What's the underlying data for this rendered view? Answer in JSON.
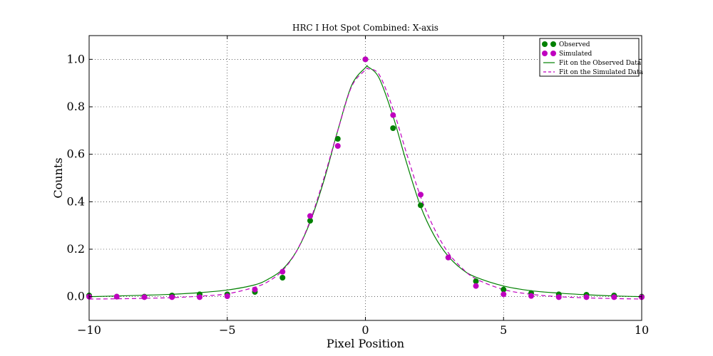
{
  "chart_data": {
    "type": "scatter",
    "title": "HRC I Hot Spot Combined: X-axis",
    "xlabel": "Pixel Position",
    "ylabel": "Counts",
    "xlim": [
      -10,
      10
    ],
    "ylim": [
      -0.1,
      1.1
    ],
    "xticks": [
      -10,
      -5,
      0,
      5,
      10
    ],
    "xtick_labels": [
      "−10",
      "−5",
      "0",
      "5",
      "10"
    ],
    "yticks": [
      0.0,
      0.2,
      0.4,
      0.6,
      0.8,
      1.0
    ],
    "ytick_labels": [
      "0.0",
      "0.2",
      "0.4",
      "0.6",
      "0.8",
      "1.0"
    ],
    "grid": true,
    "legend_position": "top-right",
    "series": [
      {
        "name": "Observed",
        "kind": "points",
        "color": "#008000",
        "x": [
          -10,
          -9,
          -8,
          -7,
          -6,
          -5,
          -4,
          -3,
          -2,
          -1,
          0,
          1,
          2,
          3,
          4,
          5,
          6,
          7,
          8,
          9,
          10
        ],
        "y": [
          0.005,
          0.0,
          0.0,
          0.005,
          0.01,
          0.01,
          0.02,
          0.08,
          0.32,
          0.665,
          1.0,
          0.71,
          0.385,
          0.165,
          0.065,
          0.03,
          0.015,
          0.01,
          0.008,
          0.005,
          0.0
        ]
      },
      {
        "name": "Simulated",
        "kind": "points",
        "color": "#bf00bf",
        "x": [
          -10,
          -9,
          -8,
          -7,
          -6,
          -5,
          -4,
          -3,
          -2,
          -1,
          0,
          1,
          2,
          3,
          4,
          5,
          6,
          7,
          8,
          9,
          10
        ],
        "y": [
          0.0,
          0.0,
          -0.002,
          -0.002,
          -0.002,
          0.002,
          0.03,
          0.105,
          0.34,
          0.635,
          1.0,
          0.765,
          0.43,
          0.165,
          0.045,
          0.01,
          0.003,
          -0.002,
          -0.002,
          -0.002,
          -0.002
        ]
      },
      {
        "name": "Fit on the Observed Data",
        "kind": "line",
        "color": "#008000",
        "dash": "solid",
        "x": [
          -10,
          -9,
          -8,
          -7,
          -6,
          -5,
          -4,
          -3.5,
          -3,
          -2.5,
          -2,
          -1.5,
          -1,
          -0.5,
          0,
          0.1,
          0.5,
          1,
          1.5,
          2,
          2.5,
          3,
          3.5,
          4,
          5,
          6,
          7,
          8,
          9,
          10
        ],
        "y": [
          0.0,
          0.003,
          0.006,
          0.01,
          0.017,
          0.028,
          0.05,
          0.075,
          0.115,
          0.19,
          0.315,
          0.49,
          0.7,
          0.89,
          0.965,
          0.968,
          0.92,
          0.76,
          0.56,
          0.38,
          0.255,
          0.17,
          0.115,
          0.082,
          0.045,
          0.025,
          0.015,
          0.008,
          0.003,
          0.0
        ]
      },
      {
        "name": "Fit on the Simulated Data",
        "kind": "line",
        "color": "#bf00bf",
        "dash": "dashed",
        "x": [
          -10,
          -9,
          -8,
          -7,
          -6,
          -5,
          -4,
          -3.5,
          -3,
          -2.5,
          -2,
          -1.5,
          -1,
          -0.5,
          0,
          0.1,
          0.5,
          1,
          1.5,
          2,
          2.5,
          3,
          3.5,
          4,
          5,
          6,
          7,
          8,
          9,
          10
        ],
        "y": [
          -0.01,
          -0.009,
          -0.007,
          -0.004,
          0.002,
          0.012,
          0.04,
          0.065,
          0.11,
          0.19,
          0.32,
          0.5,
          0.7,
          0.885,
          0.955,
          0.96,
          0.935,
          0.79,
          0.6,
          0.42,
          0.285,
          0.185,
          0.12,
          0.075,
          0.03,
          0.01,
          0.0,
          -0.005,
          -0.008,
          -0.01
        ]
      }
    ]
  }
}
